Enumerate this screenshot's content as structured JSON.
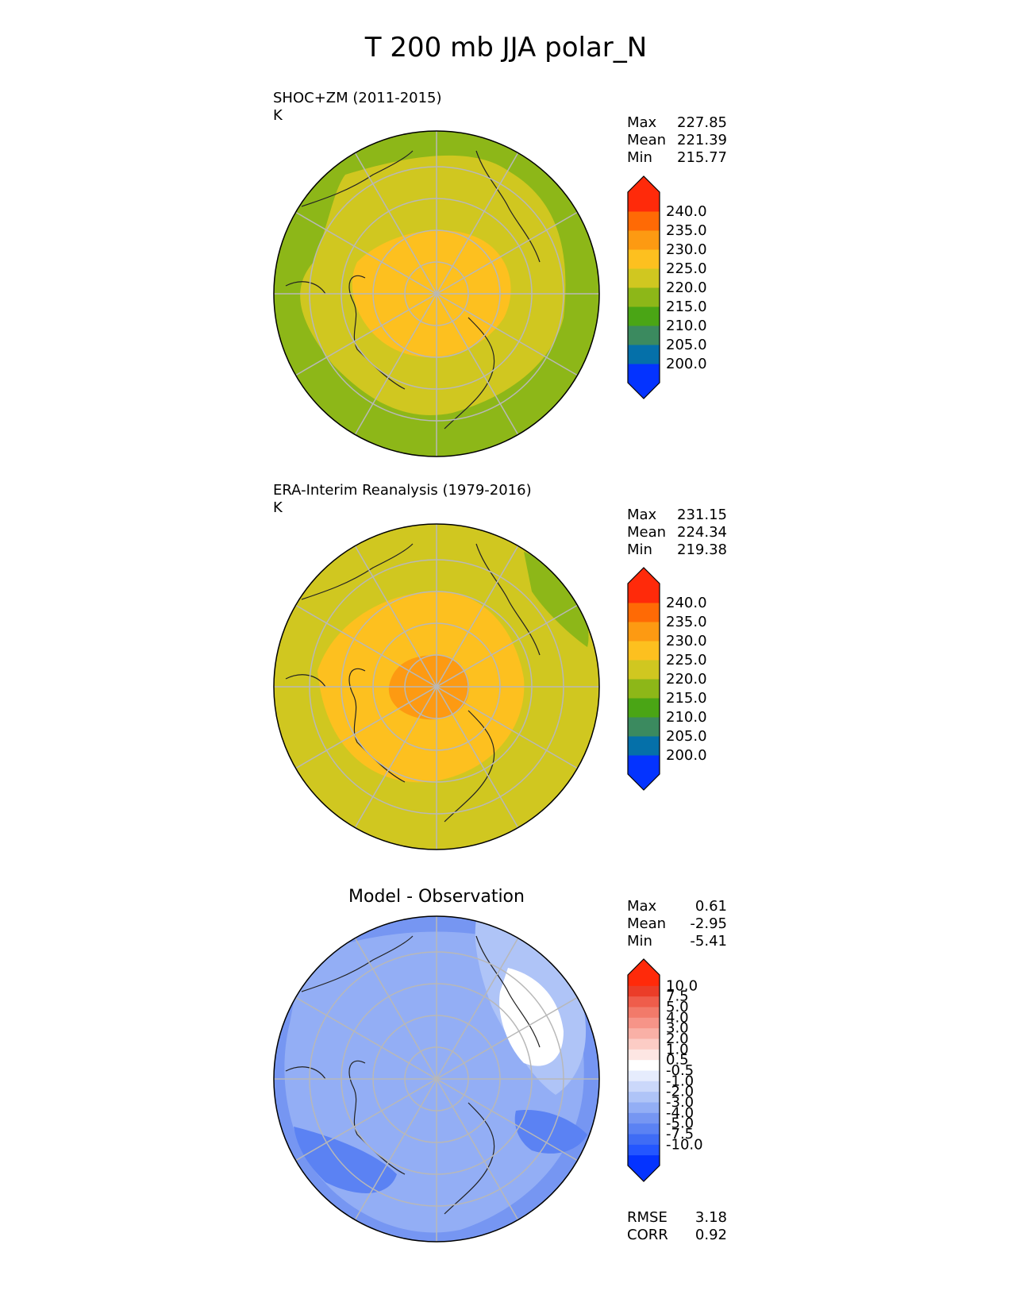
{
  "figure_title": "T 200 mb JJA polar_N",
  "panels": [
    {
      "title": "SHOC+ZM (2011-2015)",
      "units": "K",
      "stats": [
        {
          "label": "Max",
          "value": "227.85"
        },
        {
          "label": "Mean",
          "value": "221.39"
        },
        {
          "label": "Min",
          "value": "215.77"
        }
      ],
      "colorbar_ticks": [
        "240.0",
        "235.0",
        "230.0",
        "225.0",
        "220.0",
        "215.0",
        "210.0",
        "205.0",
        "200.0"
      ]
    },
    {
      "title": "ERA-Interim Reanalysis (1979-2016)",
      "units": "K",
      "stats": [
        {
          "label": "Max",
          "value": "231.15"
        },
        {
          "label": "Mean",
          "value": "224.34"
        },
        {
          "label": "Min",
          "value": "219.38"
        }
      ],
      "colorbar_ticks": [
        "240.0",
        "235.0",
        "230.0",
        "225.0",
        "220.0",
        "215.0",
        "210.0",
        "205.0",
        "200.0"
      ]
    },
    {
      "title": "Model - Observation",
      "stats": [
        {
          "label": "Max",
          "value": "0.61"
        },
        {
          "label": "Mean",
          "value": "-2.95"
        },
        {
          "label": "Min",
          "value": "-5.41"
        }
      ],
      "colorbar_ticks": [
        "10.0",
        "7.5",
        "5.0",
        "4.0",
        "3.0",
        "2.0",
        "1.0",
        "0.5",
        "-0.5",
        "-1.0",
        "-2.0",
        "-3.0",
        "-4.0",
        "-5.0",
        "-7.5",
        "-10.0"
      ],
      "metrics": [
        {
          "label": "RMSE",
          "value": "3.18"
        },
        {
          "label": "CORR",
          "value": "0.92"
        }
      ]
    }
  ],
  "colors": {
    "field_cmap": [
      "#0433ff",
      "#0570a9",
      "#3b8a5f",
      "#4aa515",
      "#8db718",
      "#d0c720",
      "#fdc01f",
      "#fd9a12",
      "#ff6a05",
      "#ff2a0a"
    ],
    "diff_cmap": [
      "#0433ff",
      "#2456ff",
      "#3f6cf5",
      "#5b82f3",
      "#7696f2",
      "#93aef5",
      "#afc4f7",
      "#cbd8fa",
      "#e6ecfd",
      "#ffffff",
      "#fde6e3",
      "#fcccc5",
      "#f9b0a6",
      "#f69488",
      "#f27a6a",
      "#ef5d4b",
      "#eb3d28",
      "#ff2a0a"
    ],
    "panel1_fill": {
      "outer": "#8db718",
      "mid": "#d0c720",
      "inner": "#fdc01f"
    },
    "panel2_fill": {
      "outer": "#d0c720",
      "mid": "#fdc01f",
      "inner": "#fd9a12",
      "edge": "#8db718"
    },
    "panel3_fill": {
      "base": "#7696f2",
      "light": "#93aef5",
      "lighter": "#afc4f7",
      "white": "#ffffff",
      "dark": "#5b82f3"
    }
  }
}
